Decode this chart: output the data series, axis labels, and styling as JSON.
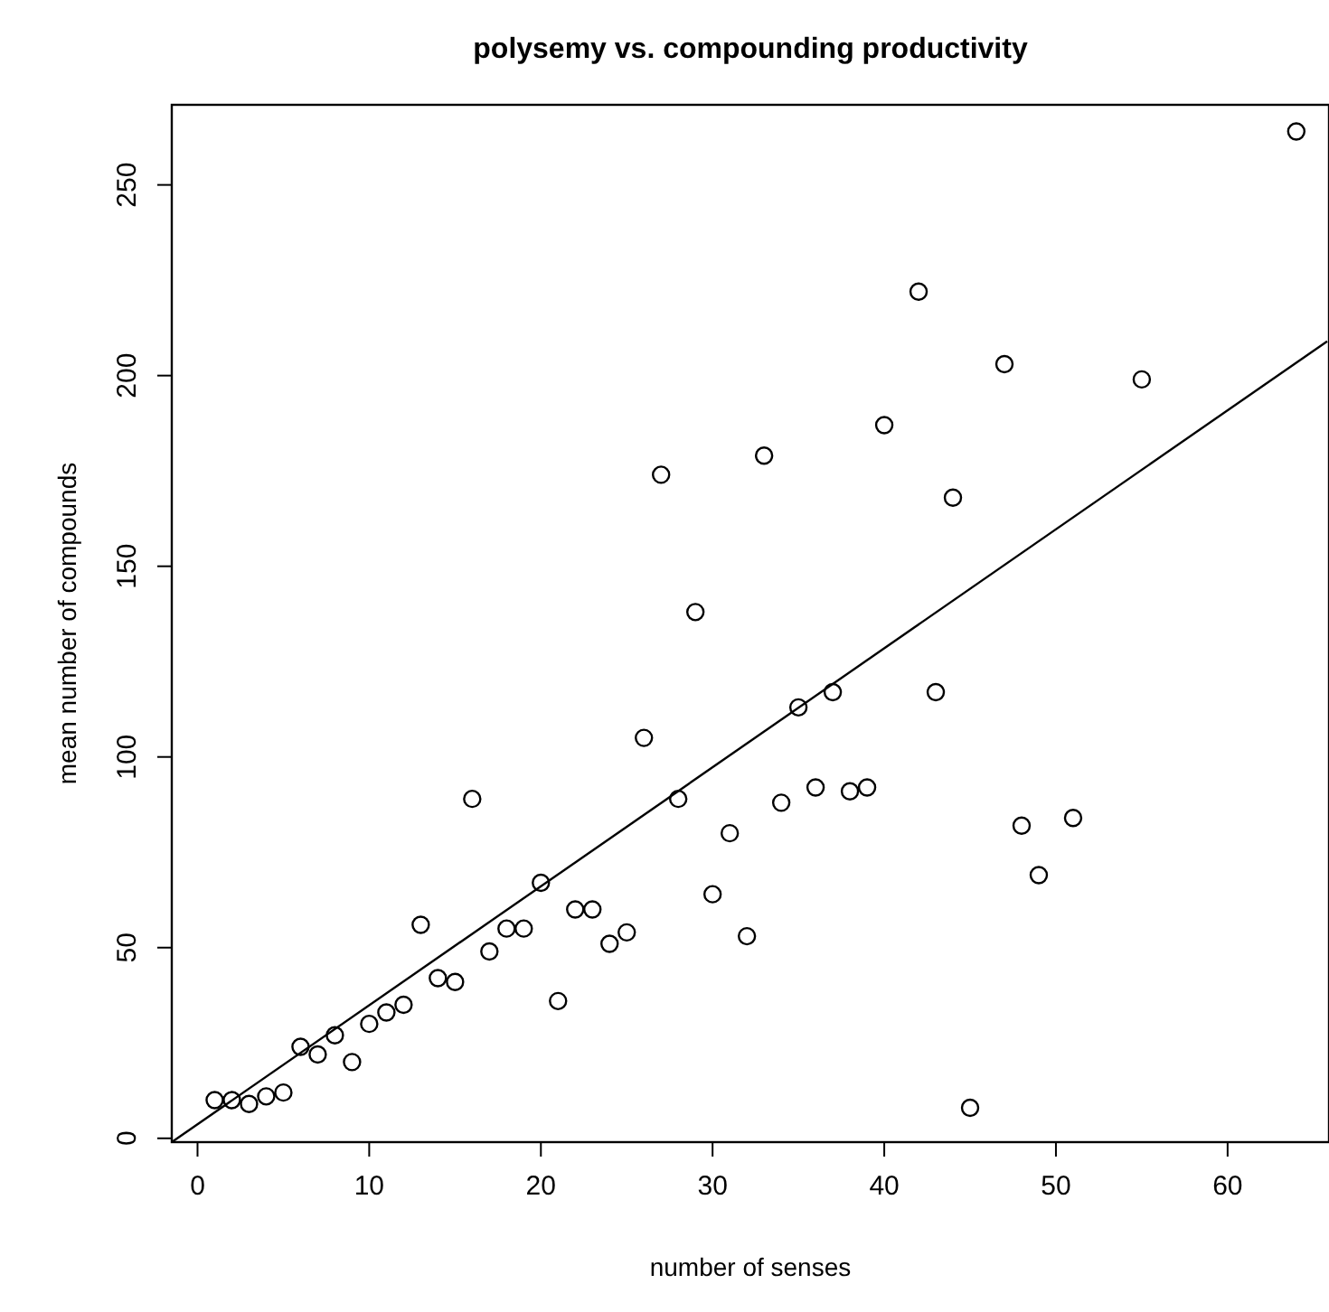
{
  "chart_data": {
    "type": "scatter",
    "title": "polysemy vs. compounding productivity",
    "xlabel": "number of senses",
    "ylabel": "mean number of compounds",
    "xlim": [
      -1.5,
      65.8
    ],
    "ylim": [
      -1,
      271
    ],
    "xticks": [
      0,
      10,
      20,
      30,
      40,
      50,
      60
    ],
    "yticks": [
      0,
      50,
      100,
      150,
      200,
      250
    ],
    "grid": false,
    "series": [
      {
        "marker": "circle",
        "color": "#000000",
        "x": [
          1,
          2,
          3,
          4,
          5,
          6,
          7,
          8,
          9,
          10,
          11,
          12,
          13,
          14,
          15,
          16,
          17,
          18,
          19,
          20,
          21,
          22,
          23,
          24,
          25,
          26,
          27,
          28,
          29,
          30,
          31,
          32,
          33,
          34,
          35,
          36,
          37,
          38,
          39,
          40,
          42,
          43,
          44,
          45,
          47,
          48,
          49,
          51,
          55,
          64
        ],
        "values": [
          10,
          10,
          9,
          11,
          12,
          24,
          22,
          27,
          20,
          30,
          33,
          35,
          56,
          42,
          41,
          89,
          49,
          55,
          55,
          67,
          36,
          60,
          60,
          51,
          54,
          105,
          174,
          89,
          138,
          64,
          80,
          53,
          179,
          88,
          113,
          92,
          117,
          91,
          92,
          187,
          222,
          117,
          168,
          8,
          203,
          82,
          69,
          84,
          199,
          264
        ]
      },
      {
        "type": "line",
        "color": "#000000",
        "x": [
          -1.5,
          65.8
        ],
        "values": [
          -1,
          209
        ]
      }
    ]
  }
}
